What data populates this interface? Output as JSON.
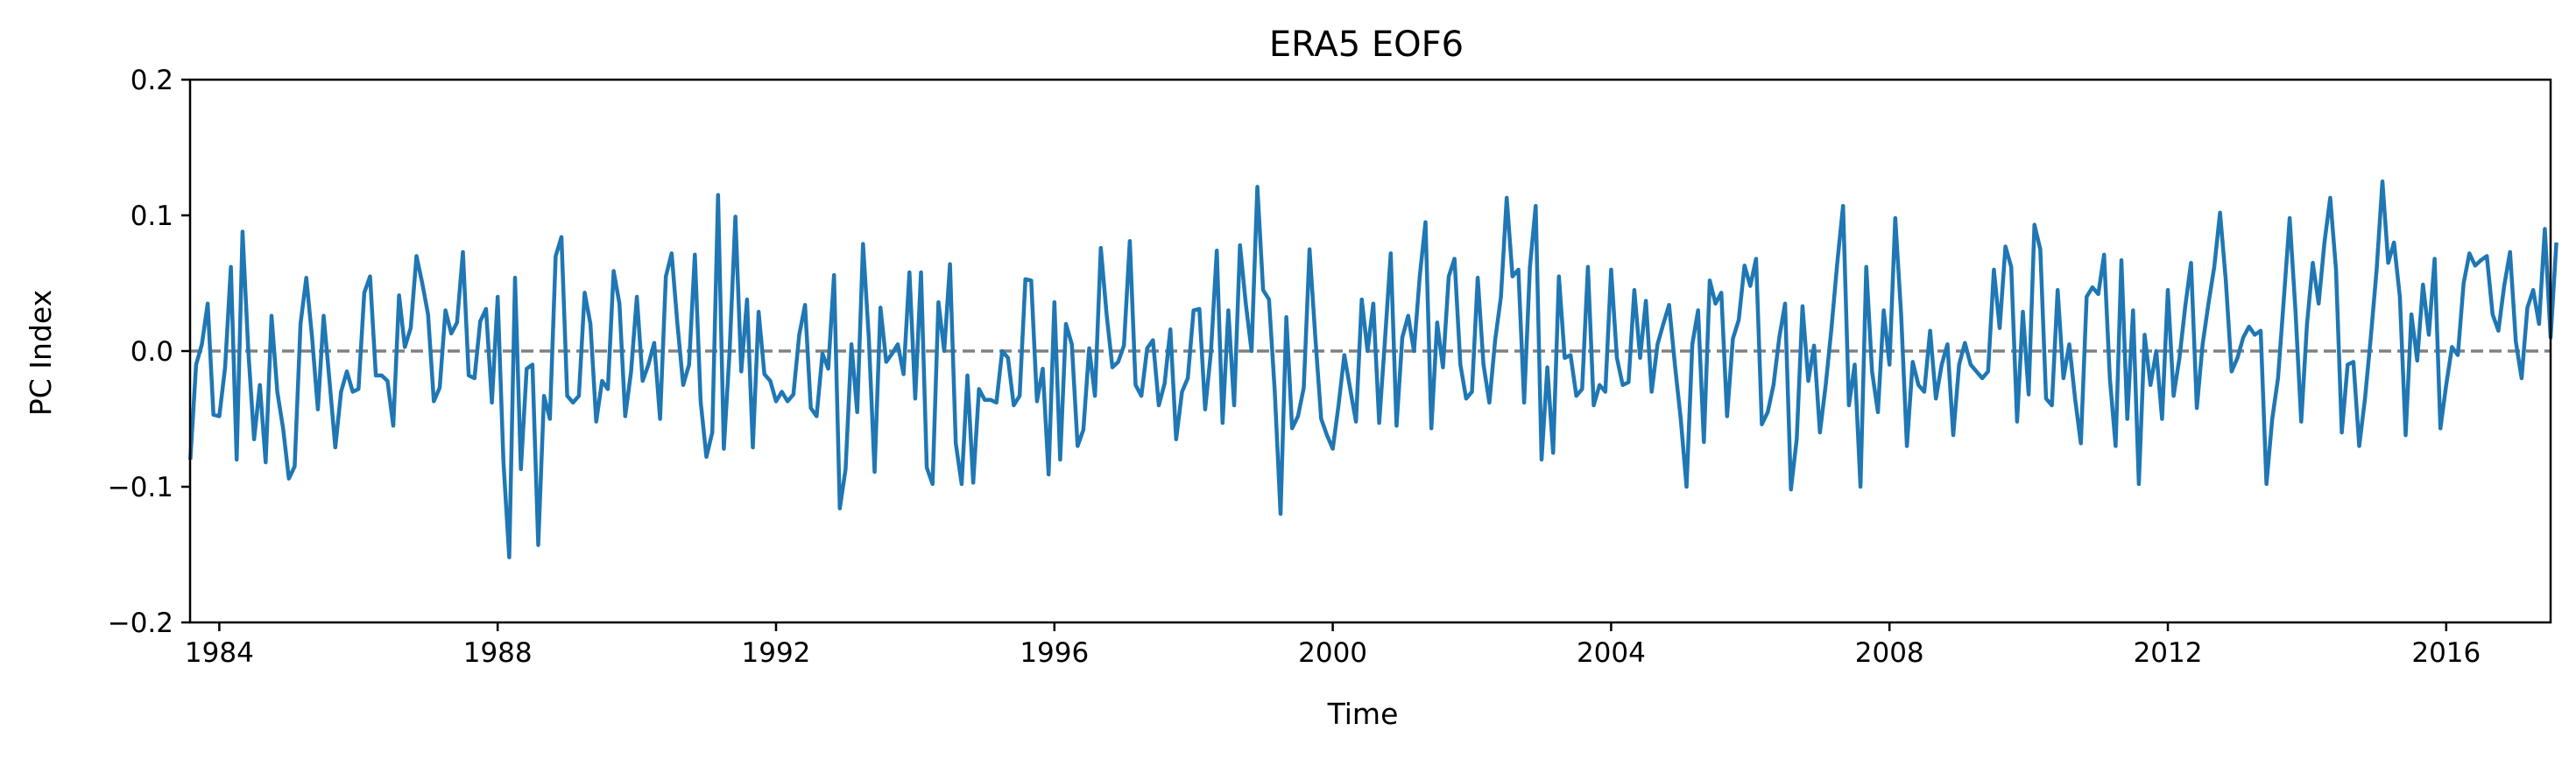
{
  "chart_data": {
    "type": "line",
    "title": "ERA5  EOF6",
    "xlabel": "Time",
    "ylabel": "PC Index",
    "xlim": [
      1983.58,
      2017.5
    ],
    "ylim": [
      -0.2,
      0.2
    ],
    "x_ticks": [
      "1984",
      "1988",
      "1992",
      "1996",
      "2000",
      "2004",
      "2008",
      "2012",
      "2016"
    ],
    "y_ticks": [
      "0.2",
      "0.1",
      "0.0",
      "−0.1",
      "−0.2"
    ],
    "grid": false,
    "legend": "none",
    "reference_line": {
      "y": 0.0,
      "style": "dashed",
      "color": "#808080"
    },
    "series": [
      {
        "color": "#1f77b4",
        "x_start": "1983-08",
        "frequency": "monthly",
        "values": [
          -0.08,
          -0.01,
          0.005,
          0.035,
          -0.047,
          -0.048,
          -0.012,
          0.062,
          -0.08,
          0.088,
          0.0,
          -0.065,
          -0.025,
          -0.082,
          0.026,
          -0.03,
          -0.057,
          -0.094,
          -0.085,
          0.02,
          0.054,
          0.01,
          -0.043,
          0.026,
          -0.022,
          -0.071,
          -0.03,
          -0.015,
          -0.03,
          -0.028,
          0.043,
          0.055,
          -0.018,
          -0.018,
          -0.022,
          -0.055,
          0.041,
          0.003,
          0.017,
          0.07,
          0.05,
          0.027,
          -0.037,
          -0.027,
          0.03,
          0.013,
          0.021,
          0.073,
          -0.018,
          -0.02,
          0.022,
          0.031,
          -0.038,
          0.04,
          -0.082,
          -0.152,
          0.054,
          -0.087,
          -0.013,
          -0.01,
          -0.143,
          -0.033,
          -0.05,
          0.07,
          0.084,
          -0.033,
          -0.038,
          -0.033,
          0.043,
          0.02,
          -0.052,
          -0.022,
          -0.028,
          0.059,
          0.035,
          -0.048,
          -0.015,
          0.04,
          -0.022,
          -0.01,
          0.006,
          -0.05,
          0.055,
          0.072,
          0.02,
          -0.025,
          -0.01,
          0.071,
          -0.037,
          -0.078,
          -0.06,
          0.115,
          -0.072,
          0.0,
          0.099,
          -0.015,
          0.038,
          -0.071,
          0.029,
          -0.017,
          -0.022,
          -0.037,
          -0.03,
          -0.037,
          -0.032,
          0.012,
          0.034,
          -0.042,
          -0.048,
          -0.002,
          -0.013,
          0.056,
          -0.116,
          -0.087,
          0.005,
          -0.045,
          0.079,
          0.01,
          -0.089,
          0.032,
          -0.008,
          -0.002,
          0.005,
          -0.017,
          0.058,
          -0.035,
          0.058,
          -0.086,
          -0.098,
          0.036,
          0.0,
          0.064,
          -0.068,
          -0.098,
          -0.018,
          -0.097,
          -0.028,
          -0.036,
          -0.036,
          -0.038,
          0.0,
          -0.005,
          -0.04,
          -0.033,
          0.053,
          0.052,
          -0.037,
          -0.013,
          -0.091,
          0.036,
          -0.08,
          0.02,
          0.005,
          -0.07,
          -0.058,
          0.002,
          -0.033,
          0.076,
          0.027,
          -0.012,
          -0.008,
          0.004,
          0.081,
          -0.025,
          -0.033,
          0.002,
          0.008,
          -0.04,
          -0.024,
          0.016,
          -0.065,
          -0.03,
          -0.02,
          0.03,
          0.031,
          -0.043,
          0.0,
          0.074,
          -0.053,
          0.03,
          -0.04,
          0.078,
          0.035,
          0.0,
          0.121,
          0.045,
          0.038,
          -0.03,
          -0.12,
          0.025,
          -0.057,
          -0.048,
          -0.027,
          0.075,
          0.01,
          -0.05,
          -0.062,
          -0.072,
          -0.04,
          -0.003,
          -0.028,
          -0.052,
          0.038,
          0.0,
          0.035,
          -0.053,
          0.008,
          0.072,
          -0.055,
          0.01,
          0.026,
          0.0,
          0.055,
          0.095,
          -0.057,
          0.021,
          -0.012,
          0.055,
          0.068,
          -0.01,
          -0.035,
          -0.03,
          0.054,
          -0.01,
          -0.038,
          0.008,
          0.04,
          0.113,
          0.055,
          0.06,
          -0.038,
          0.062,
          0.107,
          -0.08,
          -0.012,
          -0.075,
          0.055,
          -0.005,
          -0.003,
          -0.033,
          -0.028,
          0.062,
          -0.04,
          -0.025,
          -0.03,
          0.06,
          -0.005,
          -0.025,
          -0.023,
          0.045,
          -0.005,
          0.037,
          -0.03,
          0.005,
          0.02,
          0.034,
          -0.01,
          -0.05,
          -0.1,
          0.005,
          0.03,
          -0.067,
          0.052,
          0.035,
          0.043,
          -0.048,
          0.009,
          0.023,
          0.063,
          0.048,
          0.068,
          -0.054,
          -0.045,
          -0.025,
          0.01,
          0.035,
          -0.102,
          -0.065,
          0.033,
          -0.022,
          0.004,
          -0.06,
          -0.025,
          0.017,
          0.065,
          0.107,
          -0.04,
          -0.01,
          -0.1,
          0.062,
          -0.015,
          -0.045,
          0.03,
          -0.01,
          0.098,
          0.027,
          -0.07,
          -0.008,
          -0.025,
          -0.03,
          0.015,
          -0.035,
          -0.01,
          0.005,
          -0.062,
          -0.01,
          0.006,
          -0.01,
          -0.015,
          -0.02,
          -0.015,
          0.06,
          0.017,
          0.077,
          0.062,
          -0.052,
          0.029,
          -0.032,
          0.093,
          0.075,
          -0.035,
          -0.04,
          0.045,
          -0.02,
          0.005,
          -0.035,
          -0.068,
          0.04,
          0.047,
          0.042,
          0.071,
          -0.02,
          -0.07,
          0.067,
          -0.05,
          0.03,
          -0.098,
          0.012,
          -0.025,
          0.0,
          -0.05,
          0.045,
          -0.033,
          -0.005,
          0.033,
          0.065,
          -0.042,
          0.005,
          0.035,
          0.062,
          0.102,
          0.052,
          -0.015,
          -0.005,
          0.01,
          0.018,
          0.012,
          0.015,
          -0.098,
          -0.05,
          -0.02,
          0.038,
          0.098,
          0.03,
          -0.052,
          0.02,
          0.065,
          0.035,
          0.08,
          0.113,
          0.06,
          -0.06,
          -0.01,
          -0.008,
          -0.07,
          -0.035,
          0.01,
          0.06,
          0.125,
          0.065,
          0.08,
          0.04,
          -0.062,
          0.027,
          -0.007,
          0.049,
          0.012,
          0.068,
          -0.057,
          -0.025,
          0.003,
          -0.003,
          0.05,
          0.072,
          0.063,
          0.067,
          0.07,
          0.027,
          0.015,
          0.048,
          0.073,
          0.007,
          -0.02,
          0.032,
          0.045,
          0.02,
          0.09,
          0.01,
          0.08
        ]
      }
    ]
  }
}
